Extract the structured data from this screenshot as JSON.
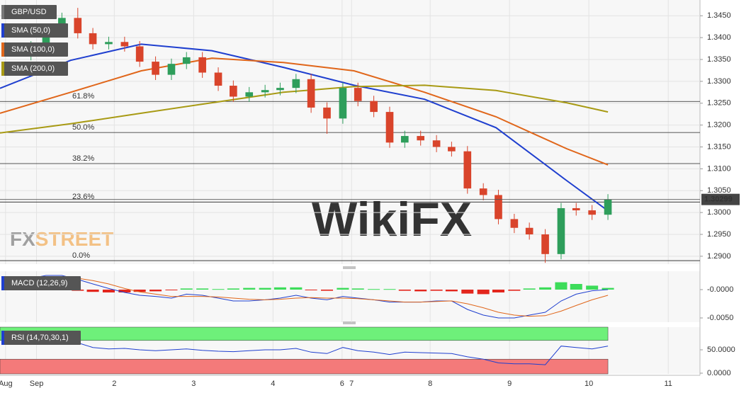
{
  "chart_data": [
    {
      "type": "candlestick",
      "title": "GBP/USD",
      "x": [
        0.93,
        1.12,
        1.32,
        1.52,
        1.71,
        1.91,
        2.11,
        2.3,
        2.5,
        2.7,
        2.89,
        3.09,
        3.29,
        3.48,
        3.68,
        3.88,
        4.07,
        4.27,
        4.46,
        4.66,
        4.86,
        5.05,
        5.25,
        5.45,
        5.64,
        5.84,
        6.04,
        6.23,
        6.43,
        6.63,
        6.82,
        7.02,
        7.21,
        7.41,
        7.61,
        7.8,
        8.0,
        8.2
      ],
      "open": [
        1.336,
        1.338,
        1.342,
        1.3445,
        1.341,
        1.3385,
        1.339,
        1.338,
        1.3345,
        1.3315,
        1.334,
        1.3355,
        1.332,
        1.329,
        1.3265,
        1.3275,
        1.328,
        1.3285,
        1.3305,
        1.324,
        1.3215,
        1.3285,
        1.3255,
        1.323,
        1.316,
        1.3175,
        1.3165,
        1.315,
        1.314,
        1.3055,
        1.304,
        1.2985,
        1.2965,
        1.295,
        1.2905,
        1.301,
        1.3005,
        1.2995
      ],
      "high": [
        1.3392,
        1.3432,
        1.3457,
        1.3468,
        1.3422,
        1.3402,
        1.3402,
        1.3392,
        1.3357,
        1.3352,
        1.3367,
        1.3367,
        1.3332,
        1.3302,
        1.3287,
        1.3292,
        1.3297,
        1.3317,
        1.3317,
        1.3252,
        1.3297,
        1.3297,
        1.3267,
        1.3242,
        1.3187,
        1.3187,
        1.3177,
        1.3162,
        1.3152,
        1.3067,
        1.3052,
        1.2997,
        1.2977,
        1.2962,
        1.3022,
        1.3022,
        1.3017,
        1.3042
      ],
      "low": [
        1.3348,
        1.3368,
        1.3408,
        1.3398,
        1.3373,
        1.3373,
        1.3368,
        1.3333,
        1.3303,
        1.3303,
        1.3328,
        1.3308,
        1.3278,
        1.3253,
        1.3253,
        1.3263,
        1.3268,
        1.3273,
        1.3228,
        1.318,
        1.3203,
        1.3243,
        1.3218,
        1.3148,
        1.3148,
        1.3153,
        1.3138,
        1.3128,
        1.3043,
        1.3028,
        1.2973,
        1.2953,
        1.2938,
        1.2885,
        1.2893,
        1.2993,
        1.2983,
        1.2983
      ],
      "close": [
        1.338,
        1.342,
        1.3445,
        1.341,
        1.3385,
        1.339,
        1.338,
        1.3345,
        1.3315,
        1.334,
        1.3355,
        1.332,
        1.329,
        1.3265,
        1.3275,
        1.328,
        1.3285,
        1.3305,
        1.324,
        1.3215,
        1.3285,
        1.3255,
        1.323,
        1.316,
        1.3175,
        1.3165,
        1.315,
        1.314,
        1.3055,
        1.304,
        1.2985,
        1.2965,
        1.295,
        1.2905,
        1.301,
        1.3005,
        1.2995,
        1.303
      ],
      "up_color": "#2e9e5b",
      "down_color": "#d9442b",
      "series": [
        {
          "name": "SMA (50,0)",
          "color": "#1f3fcf",
          "x": [
            0.54,
            1.43,
            2.32,
            3.21,
            4.11,
            5.0,
            5.89,
            6.79,
            7.68,
            8.2
          ],
          "values": [
            1.3284,
            1.3348,
            1.3385,
            1.337,
            1.3332,
            1.3291,
            1.3259,
            1.3194,
            1.3073,
            1.3004
          ]
        },
        {
          "name": "SMA (100,0)",
          "color": "#e0661a",
          "x": [
            0.54,
            1.43,
            2.32,
            3.21,
            4.11,
            5.0,
            5.89,
            6.79,
            7.68,
            8.2
          ],
          "values": [
            1.3227,
            1.3275,
            1.3324,
            1.3353,
            1.3343,
            1.3324,
            1.3275,
            1.3219,
            1.3146,
            1.3109
          ]
        },
        {
          "name": "SMA (200,0)",
          "color": "#a89a14",
          "x": [
            0.54,
            1.43,
            2.32,
            3.21,
            4.11,
            5.0,
            5.89,
            6.79,
            7.68,
            8.2
          ],
          "values": [
            1.3182,
            1.3203,
            1.3227,
            1.3251,
            1.3275,
            1.3288,
            1.3291,
            1.3279,
            1.3251,
            1.323
          ]
        }
      ],
      "levels": [
        {
          "label": "61.8%",
          "value": 1.3254
        },
        {
          "label": "50.0%",
          "value": 1.3183
        },
        {
          "label": "38.2%",
          "value": 1.3112
        },
        {
          "label": "23.6%",
          "value": 1.3024
        },
        {
          "label": "0.0%",
          "value": 1.289
        }
      ],
      "last_price": 1.30299,
      "xlim": [
        0.54,
        9.36
      ],
      "xticks": [
        {
          "value": 0.61,
          "label": "Aug"
        },
        {
          "value": 1,
          "label": "Sep"
        },
        {
          "value": 1.98,
          "label": "2"
        },
        {
          "value": 2.98,
          "label": "3"
        },
        {
          "value": 3.98,
          "label": "4"
        },
        {
          "value": 4.85,
          "label": "6"
        },
        {
          "value": 4.97,
          "label": "7"
        },
        {
          "value": 5.96,
          "label": "8"
        },
        {
          "value": 6.96,
          "label": "9"
        },
        {
          "value": 7.96,
          "label": "10"
        },
        {
          "value": 8.96,
          "label": "11"
        }
      ],
      "ylim": [
        1.2882,
        1.3486
      ],
      "yticks": [
        {
          "value": 1.29,
          "label": "1.2900"
        },
        {
          "value": 1.295,
          "label": "1.2950"
        },
        {
          "value": 1.3,
          "label": "1.3000"
        },
        {
          "value": 1.305,
          "label": "1.3050"
        },
        {
          "value": 1.31,
          "label": "1.3100"
        },
        {
          "value": 1.315,
          "label": "1.3150"
        },
        {
          "value": 1.32,
          "label": "1.3200"
        },
        {
          "value": 1.325,
          "label": "1.3250"
        },
        {
          "value": 1.33,
          "label": "1.3300"
        },
        {
          "value": 1.335,
          "label": "1.3350"
        },
        {
          "value": 1.34,
          "label": "1.3400"
        },
        {
          "value": 1.345,
          "label": "1.3450"
        }
      ],
      "grid": true,
      "brand": [
        "FX",
        "STREET"
      ],
      "watermark": "WikiFX"
    },
    {
      "type": "macd",
      "title": "MACD (12,26,9)",
      "x": [
        0.93,
        1.12,
        1.32,
        1.52,
        1.71,
        1.91,
        2.11,
        2.3,
        2.5,
        2.7,
        2.89,
        3.09,
        3.29,
        3.48,
        3.68,
        3.88,
        4.07,
        4.27,
        4.46,
        4.66,
        4.86,
        5.05,
        5.25,
        5.45,
        5.64,
        5.84,
        6.04,
        6.23,
        6.43,
        6.63,
        6.82,
        7.02,
        7.21,
        7.41,
        7.61,
        7.8,
        8.0,
        8.2
      ],
      "histogram": [
        0.0003,
        0.0002,
        0.0001,
        -0.0002,
        -0.0004,
        -0.0005,
        -0.0005,
        -0.0004,
        -0.0003,
        -0.0001,
        0.0002,
        0.0002,
        0.0001,
        0.0002,
        0.0003,
        0.0003,
        0.0004,
        0.0004,
        -0.0001,
        -0.0002,
        0.0003,
        0.0002,
        0.0001,
        0.0001,
        -0.0002,
        -0.0003,
        -0.0002,
        -0.0003,
        -0.0007,
        -0.0008,
        -0.0005,
        -0.0002,
        0.0002,
        0.0004,
        0.0013,
        0.001,
        0.0007,
        0.0003
      ],
      "pos_color": "#3ddc5a",
      "neg_color": "#e3261d",
      "series": [
        {
          "name": "MACD",
          "color": "#1f3fcf",
          "values": [
            0.002,
            0.0025,
            0.0025,
            0.0018,
            0.001,
            0.0002,
            -0.0005,
            -0.001,
            -0.0012,
            -0.0015,
            -0.0008,
            -0.001,
            -0.0015,
            -0.002,
            -0.002,
            -0.0018,
            -0.0015,
            -0.001,
            -0.0015,
            -0.0018,
            -0.0012,
            -0.0015,
            -0.0018,
            -0.0022,
            -0.0022,
            -0.0022,
            -0.002,
            -0.002,
            -0.0035,
            -0.0045,
            -0.005,
            -0.005,
            -0.0045,
            -0.004,
            -0.002,
            -0.0008,
            -0.0002,
            0.0
          ]
        },
        {
          "name": "Signal",
          "color": "#e0661a",
          "values": [
            0.0015,
            0.0018,
            0.002,
            0.002,
            0.0016,
            0.001,
            0.0002,
            -0.0004,
            -0.0008,
            -0.0012,
            -0.0012,
            -0.0012,
            -0.0013,
            -0.0015,
            -0.0017,
            -0.0018,
            -0.0017,
            -0.0015,
            -0.0014,
            -0.0015,
            -0.0015,
            -0.0016,
            -0.0018,
            -0.002,
            -0.0022,
            -0.0022,
            -0.0021,
            -0.002,
            -0.0025,
            -0.0032,
            -0.004,
            -0.0045,
            -0.0047,
            -0.0046,
            -0.0038,
            -0.0028,
            -0.0018,
            -0.001
          ]
        }
      ],
      "ylim": [
        -0.00575,
        0.00325
      ],
      "yticks": [
        {
          "value": -0.005,
          "label": "-0.0050"
        },
        {
          "value": 0,
          "label": "-0.0000"
        }
      ]
    },
    {
      "type": "rsi",
      "title": "RSI (14,70,30,1)",
      "x": [
        0.93,
        1.12,
        1.32,
        1.52,
        1.71,
        1.91,
        2.11,
        2.3,
        2.5,
        2.7,
        2.89,
        3.09,
        3.29,
        3.48,
        3.68,
        3.88,
        4.07,
        4.27,
        4.46,
        4.66,
        4.86,
        5.05,
        5.25,
        5.45,
        5.64,
        5.84,
        6.04,
        6.23,
        6.43,
        6.63,
        6.82,
        7.02,
        7.21,
        7.41,
        7.61,
        7.8,
        8.0,
        8.2
      ],
      "values": [
        70,
        72,
        75,
        65,
        55,
        52,
        53,
        50,
        48,
        50,
        52,
        49,
        47,
        46,
        48,
        50,
        50,
        53,
        45,
        42,
        55,
        48,
        45,
        40,
        45,
        44,
        43,
        42,
        35,
        30,
        22,
        20,
        20,
        18,
        58,
        55,
        52,
        58
      ],
      "color": "#1f3fcf",
      "overbought": 70,
      "oversold": 30,
      "overbought_color": "#6ef07a",
      "oversold_color": "#f47a7a",
      "ylim": [
        -1.5,
        98.5
      ],
      "yticks": [
        {
          "value": 0,
          "label": "0.0000"
        },
        {
          "value": 50,
          "label": "50.0000"
        }
      ]
    }
  ]
}
